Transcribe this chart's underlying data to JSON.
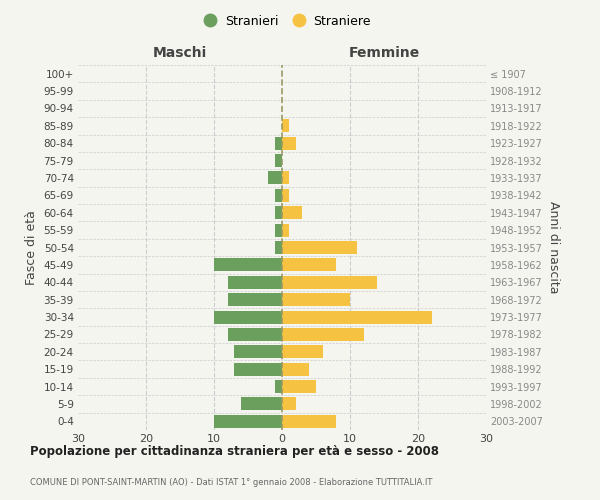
{
  "age_groups": [
    "0-4",
    "5-9",
    "10-14",
    "15-19",
    "20-24",
    "25-29",
    "30-34",
    "35-39",
    "40-44",
    "45-49",
    "50-54",
    "55-59",
    "60-64",
    "65-69",
    "70-74",
    "75-79",
    "80-84",
    "85-89",
    "90-94",
    "95-99",
    "100+"
  ],
  "birth_years": [
    "2003-2007",
    "1998-2002",
    "1993-1997",
    "1988-1992",
    "1983-1987",
    "1978-1982",
    "1973-1977",
    "1968-1972",
    "1963-1967",
    "1958-1962",
    "1953-1957",
    "1948-1952",
    "1943-1947",
    "1938-1942",
    "1933-1937",
    "1928-1932",
    "1923-1927",
    "1918-1922",
    "1913-1917",
    "1908-1912",
    "≤ 1907"
  ],
  "maschi": [
    10,
    6,
    1,
    7,
    7,
    8,
    10,
    8,
    8,
    10,
    1,
    1,
    1,
    1,
    2,
    1,
    1,
    0,
    0,
    0,
    0
  ],
  "femmine": [
    8,
    2,
    5,
    4,
    6,
    12,
    22,
    10,
    14,
    8,
    11,
    1,
    3,
    1,
    1,
    0,
    2,
    1,
    0,
    0,
    0
  ],
  "color_maschi": "#6a9f5e",
  "color_femmine": "#f5c242",
  "background_color": "#f5f5f0",
  "grid_color": "#cccccc",
  "dashed_line_color": "#999966",
  "title": "Popolazione per cittadinanza straniera per età e sesso - 2008",
  "subtitle": "COMUNE DI PONT-SAINT-MARTIN (AO) - Dati ISTAT 1° gennaio 2008 - Elaborazione TUTTITALIA.IT",
  "ylabel_left": "Fasce di età",
  "ylabel_right": "Anni di nascita",
  "header_left": "Maschi",
  "header_right": "Femmine",
  "legend_stranieri": "Stranieri",
  "legend_straniere": "Straniere",
  "xlim": 30
}
